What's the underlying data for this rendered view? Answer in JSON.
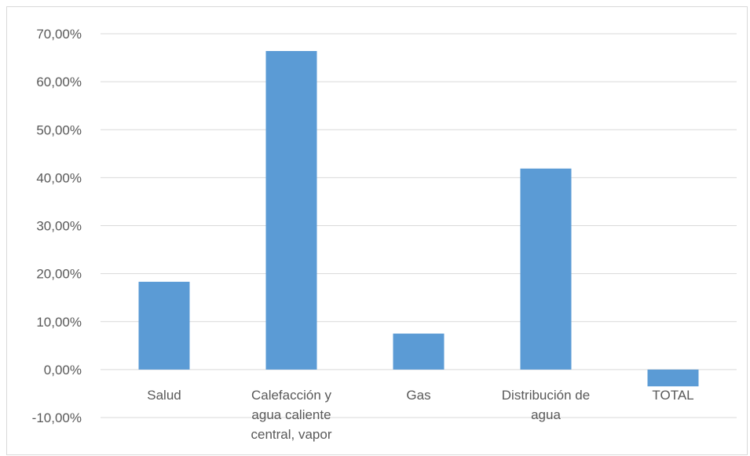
{
  "chart_data": {
    "type": "bar",
    "title": "",
    "xlabel": "",
    "ylabel": "",
    "categories": [
      [
        "Salud"
      ],
      [
        "Calefacción y",
        "agua caliente",
        "central, vapor"
      ],
      [
        "Gas"
      ],
      [
        "Distribución de",
        "agua"
      ],
      [
        "TOTAL"
      ]
    ],
    "values": [
      18.3,
      66.4,
      7.5,
      41.9,
      -3.5
    ],
    "ylim": [
      -10,
      70
    ],
    "yticks": [
      -10,
      0,
      10,
      20,
      30,
      40,
      50,
      60,
      70
    ],
    "ytick_labels": [
      "-10,00%",
      "0,00%",
      "10,00%",
      "20,00%",
      "30,00%",
      "40,00%",
      "50,00%",
      "60,00%",
      "70,00%"
    ],
    "grid": true,
    "legend": "none",
    "colors": {
      "bar": "#5B9BD5",
      "grid": "#d9d9d9",
      "text": "#595959"
    }
  }
}
